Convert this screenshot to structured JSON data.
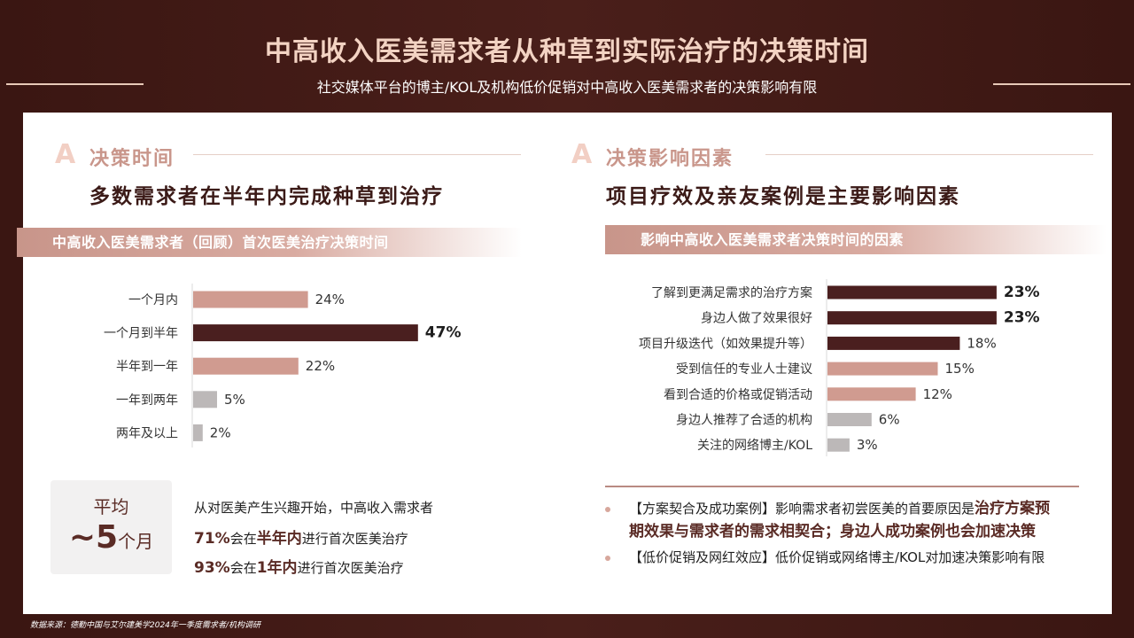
{
  "header": {
    "title": "中高收入医美需求者从种草到实际治疗的决策时间",
    "subtitle": "社交媒体平台的博主/KOL及机构低价促销对中高收入医美需求者的决策影响有限"
  },
  "left": {
    "icon": "A",
    "section_title": "决策时间",
    "headline": "多数需求者在半年内完成种草到治疗",
    "band_title": "中高收入医美需求者（回顾）首次医美治疗决策时间"
  },
  "right": {
    "icon": "A",
    "section_title": "决策影响因素",
    "headline": "项目疗效及亲友案例是主要影响因素",
    "band_title": "影响中高收入医美需求者决策时间的因素"
  },
  "average": {
    "label": "平均",
    "value": "~5",
    "unit": "个月"
  },
  "summary": {
    "line1": "从对医美产生兴趣开始，中高收入需求者",
    "line2_pct": "71%",
    "line2_mid": "会在",
    "line2_hl": "半年内",
    "line2_end": "进行首次医美治疗",
    "line3_pct": "93%",
    "line3_mid": "会在",
    "line3_hl": "1年内",
    "line3_end": "进行首次医美治疗"
  },
  "notes": {
    "n1_pre": "【方案契合及成功案例】影响需求者初尝医美的首要原因是",
    "n1_hl1": "治疗方案预",
    "n1_hl2": "期效果与需求者的需求相契合；身边人成功案例也会加速决策",
    "n2": "【低价促销及网红效应】低价促销或网络博主/KOL对加速决策影响有限"
  },
  "source": "数据来源：德勤中国与艾尔建美学2024年一季度需求者/机构调研",
  "colors": {
    "dark": "#4a1f1f",
    "pink": "#d09b90",
    "gray": "#bcb8b8"
  },
  "chart_data": [
    {
      "type": "bar",
      "orientation": "horizontal",
      "title": "中高收入医美需求者（回顾）首次医美治疗决策时间",
      "categories": [
        "一个月内",
        "一个月到半年",
        "半年到一年",
        "一年到两年",
        "两年及以上"
      ],
      "values": [
        24,
        47,
        22,
        5,
        2
      ],
      "labels": [
        "24%",
        "47%",
        "22%",
        "5%",
        "2%"
      ],
      "bar_colors": [
        "pink",
        "dark",
        "pink",
        "gray",
        "gray"
      ],
      "unit": "%"
    },
    {
      "type": "bar",
      "orientation": "horizontal",
      "title": "影响中高收入医美需求者决策时间的因素",
      "categories": [
        "了解到更满足需求的治疗方案",
        "身边人做了效果很好",
        "项目升级迭代（如效果提升等）",
        "受到信任的专业人士建议",
        "看到合适的价格或促销活动",
        "身边人推荐了合适的机构",
        "关注的网络博主/KOL"
      ],
      "values": [
        23,
        23,
        18,
        15,
        12,
        6,
        3
      ],
      "labels": [
        "23%",
        "23%",
        "18%",
        "15%",
        "12%",
        "6%",
        "3%"
      ],
      "bar_colors": [
        "dark",
        "dark",
        "dark",
        "pink",
        "pink",
        "gray",
        "gray"
      ],
      "unit": "%"
    }
  ]
}
